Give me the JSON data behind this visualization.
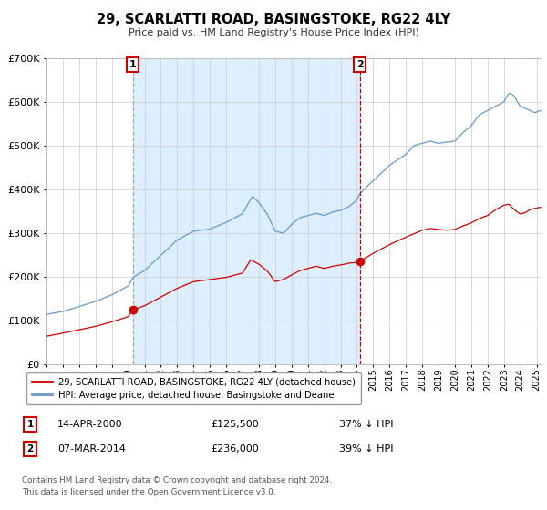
{
  "title": "29, SCARLATTI ROAD, BASINGSTOKE, RG22 4LY",
  "subtitle": "Price paid vs. HM Land Registry's House Price Index (HPI)",
  "legend_line1": "29, SCARLATTI ROAD, BASINGSTOKE, RG22 4LY (detached house)",
  "legend_line2": "HPI: Average price, detached house, Basingstoke and Deane",
  "footnote1": "Contains HM Land Registry data © Crown copyright and database right 2024.",
  "footnote2": "This data is licensed under the Open Government Licence v3.0.",
  "sale1_date": "14-APR-2000",
  "sale1_price": 125500,
  "sale1_label": "37% ↓ HPI",
  "sale2_date": "07-MAR-2014",
  "sale2_price": 236000,
  "sale2_label": "39% ↓ HPI",
  "sale1_x": 2000.29,
  "sale2_x": 2014.18,
  "red_line_color": "#cc0000",
  "blue_line_color": "#6699cc",
  "shaded_region_color": "#ddeeff",
  "vline1_color": "#aaaaaa",
  "vline2_color": "#cc0000",
  "background_color": "#ffffff",
  "grid_color": "#cccccc",
  "ylim_max": 700000,
  "xlim_start": 1995.0,
  "xlim_end": 2025.3,
  "hpi_key_x": [
    1995.0,
    1996.0,
    1997.0,
    1998.0,
    1999.0,
    2000.0,
    2000.3,
    2001.0,
    2002.0,
    2003.0,
    2004.0,
    2005.0,
    2006.0,
    2007.0,
    2007.6,
    2008.0,
    2008.5,
    2009.0,
    2009.5,
    2010.0,
    2010.5,
    2011.0,
    2011.5,
    2012.0,
    2012.5,
    2013.0,
    2013.5,
    2014.0,
    2014.18,
    2015.0,
    2016.0,
    2017.0,
    2017.5,
    2018.0,
    2018.5,
    2019.0,
    2019.5,
    2020.0,
    2020.5,
    2021.0,
    2021.5,
    2022.0,
    2022.5,
    2022.8,
    2023.0,
    2023.3,
    2023.6,
    2023.9,
    2024.0,
    2024.3,
    2024.6,
    2024.9,
    2025.2
  ],
  "hpi_key_y": [
    115000,
    122000,
    133000,
    145000,
    160000,
    180000,
    200000,
    215000,
    250000,
    285000,
    305000,
    310000,
    325000,
    345000,
    385000,
    370000,
    345000,
    305000,
    300000,
    320000,
    335000,
    340000,
    345000,
    340000,
    348000,
    352000,
    360000,
    375000,
    390000,
    420000,
    455000,
    480000,
    500000,
    505000,
    510000,
    505000,
    508000,
    510000,
    530000,
    545000,
    570000,
    580000,
    590000,
    595000,
    600000,
    620000,
    615000,
    595000,
    590000,
    585000,
    580000,
    575000,
    580000
  ],
  "red_key_x": [
    1995.0,
    1996.0,
    1997.0,
    1998.0,
    1999.0,
    2000.0,
    2000.29,
    2001.0,
    2002.0,
    2003.0,
    2004.0,
    2005.0,
    2006.0,
    2007.0,
    2007.5,
    2008.0,
    2008.5,
    2009.0,
    2009.5,
    2010.0,
    2010.5,
    2011.0,
    2011.5,
    2012.0,
    2012.5,
    2013.0,
    2013.5,
    2014.0,
    2014.18,
    2015.0,
    2016.0,
    2017.0,
    2017.5,
    2018.0,
    2018.5,
    2019.0,
    2019.5,
    2020.0,
    2020.5,
    2021.0,
    2021.5,
    2022.0,
    2022.5,
    2022.8,
    2023.0,
    2023.3,
    2023.5,
    2023.8,
    2024.0,
    2024.3,
    2024.6,
    2024.9,
    2025.2
  ],
  "red_key_y": [
    65000,
    72000,
    80000,
    88000,
    98000,
    110000,
    125500,
    135000,
    155000,
    175000,
    190000,
    195000,
    200000,
    210000,
    240000,
    230000,
    215000,
    190000,
    195000,
    205000,
    215000,
    220000,
    225000,
    220000,
    225000,
    228000,
    232000,
    234000,
    236000,
    255000,
    275000,
    292000,
    300000,
    308000,
    312000,
    310000,
    308000,
    310000,
    318000,
    325000,
    335000,
    342000,
    355000,
    362000,
    365000,
    368000,
    360000,
    350000,
    345000,
    348000,
    355000,
    358000,
    360000
  ]
}
